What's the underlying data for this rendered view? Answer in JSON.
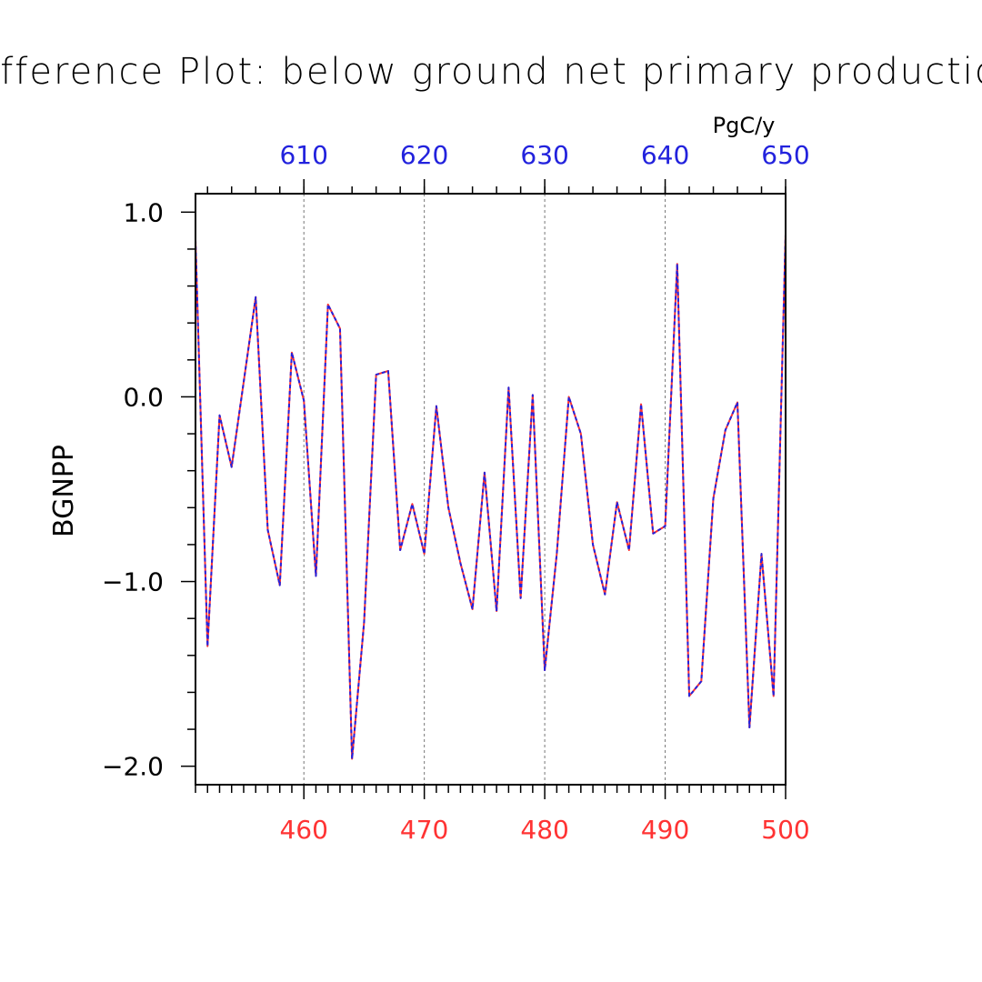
{
  "chart_data": {
    "type": "line",
    "title": "Difference Plot: below ground net primary production",
    "ylabel": "BGNPP",
    "units": "PgC/y",
    "xlim": [
      451,
      500
    ],
    "x2lim": [
      601,
      650
    ],
    "ylim": [
      -2.1,
      1.1
    ],
    "x_ticks": [
      "460",
      "470",
      "480",
      "490",
      "500"
    ],
    "x2_ticks": [
      "610",
      "620",
      "630",
      "640",
      "650"
    ],
    "y_ticks": [
      "1.0",
      "0.0",
      "−1.0",
      "−2.0"
    ],
    "grid": "vertical dashed at major bottom ticks",
    "colors": {
      "bottom_axis": "#ff3333",
      "top_axis": "#2222dd",
      "series_a": "#ff3333",
      "series_b": "#2222dd"
    },
    "x": [
      451,
      452,
      453,
      454,
      455,
      456,
      457,
      458,
      459,
      460,
      461,
      462,
      463,
      464,
      465,
      466,
      467,
      468,
      469,
      470,
      471,
      472,
      473,
      474,
      475,
      476,
      477,
      478,
      479,
      480,
      481,
      482,
      483,
      484,
      485,
      486,
      487,
      488,
      489,
      490,
      491,
      492,
      493,
      494,
      495,
      496,
      497,
      498,
      499,
      500
    ],
    "series": [
      {
        "values": [
          0.85,
          -1.35,
          -0.1,
          -0.38,
          0.08,
          0.54,
          -0.72,
          -1.02,
          0.24,
          -0.02,
          -0.97,
          0.5,
          0.37,
          -1.96,
          -1.22,
          0.12,
          0.14,
          -0.83,
          -0.58,
          -0.85,
          -0.05,
          -0.6,
          -0.9,
          -1.15,
          -0.41,
          -1.16,
          0.05,
          -1.09,
          0.01,
          -1.48,
          -0.85,
          0.0,
          -0.2,
          -0.8,
          -1.07,
          -0.57,
          -0.83,
          -0.04,
          -0.74,
          -0.7,
          0.72,
          -1.62,
          -1.54,
          -0.55,
          -0.18,
          -0.03,
          -1.79,
          -0.85,
          -1.62,
          0.88
        ]
      },
      {
        "values": [
          0.85,
          -1.35,
          -0.1,
          -0.38,
          0.08,
          0.54,
          -0.72,
          -1.02,
          0.24,
          -0.02,
          -0.97,
          0.5,
          0.37,
          -1.96,
          -1.22,
          0.12,
          0.14,
          -0.83,
          -0.58,
          -0.85,
          -0.05,
          -0.6,
          -0.9,
          -1.15,
          -0.41,
          -1.16,
          0.05,
          -1.09,
          0.01,
          -1.48,
          -0.85,
          0.0,
          -0.2,
          -0.8,
          -1.07,
          -0.57,
          -0.83,
          -0.04,
          -0.74,
          -0.7,
          0.72,
          -1.62,
          -1.54,
          -0.55,
          -0.18,
          -0.03,
          -1.79,
          -0.85,
          -1.62,
          0.88
        ]
      }
    ]
  }
}
